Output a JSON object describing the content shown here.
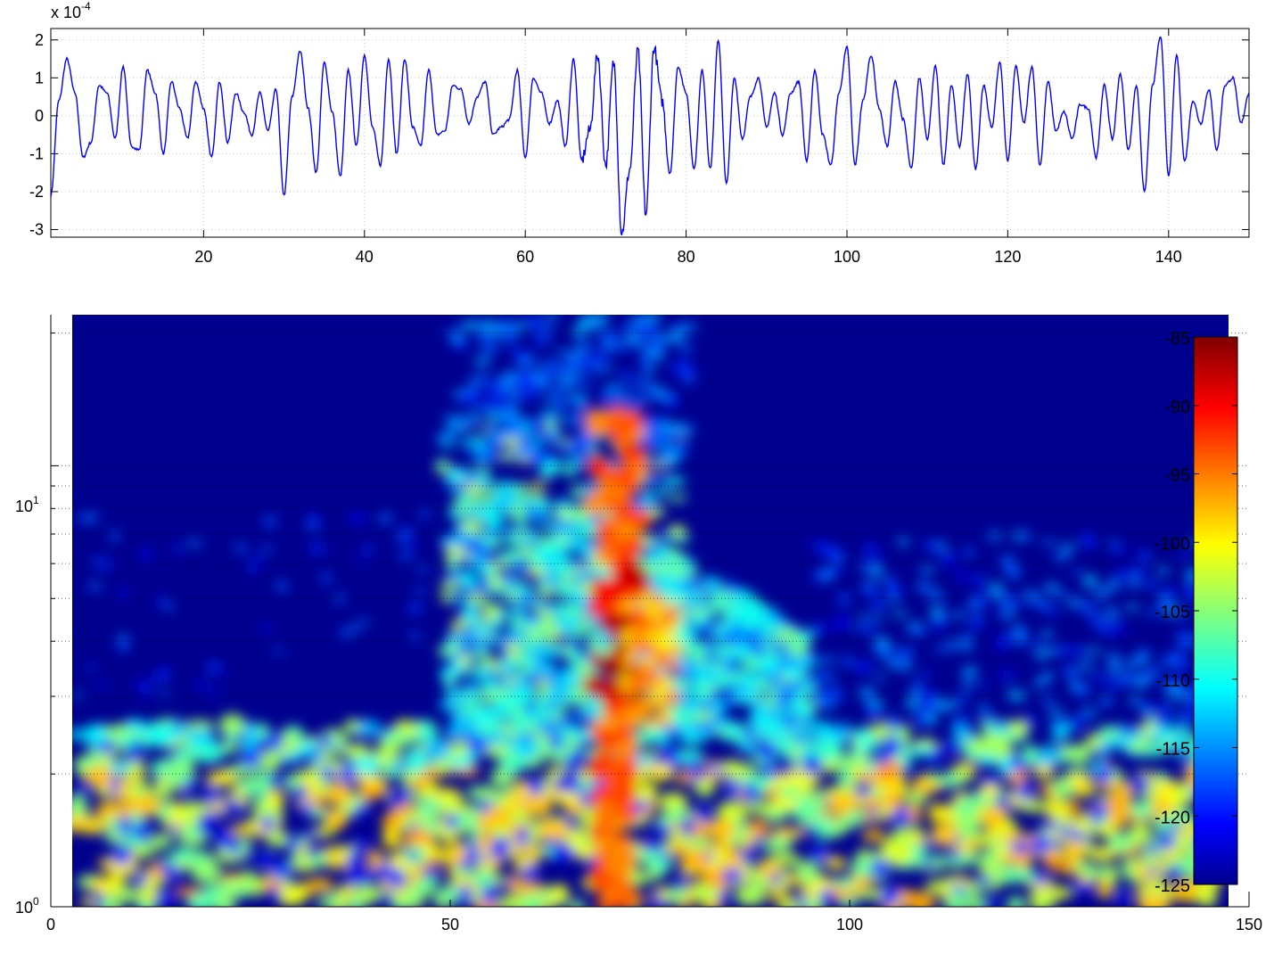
{
  "chart_data": [
    {
      "type": "line",
      "scale_label": {
        "base": "x 10",
        "exponent": "-4"
      },
      "xlim": [
        1,
        150
      ],
      "ylim": [
        -3.2,
        2.3
      ],
      "x_ticks": [
        20,
        40,
        60,
        80,
        100,
        120,
        140
      ],
      "y_ticks": [
        2,
        1,
        0,
        -1,
        -2,
        -3
      ],
      "grid": true,
      "series": [
        {
          "color": "#0000ff",
          "x": [
            1,
            2,
            3,
            4,
            5,
            6,
            7,
            8,
            9,
            10,
            11,
            12,
            13,
            14,
            15,
            16,
            17,
            18,
            19,
            20,
            21,
            22,
            23,
            24,
            25,
            26,
            27,
            28,
            29,
            30,
            31,
            32,
            33,
            34,
            35,
            36,
            37,
            38,
            39,
            40,
            41,
            42,
            43,
            44,
            45,
            46,
            47,
            48,
            49,
            50,
            51,
            52,
            53,
            54,
            55,
            56,
            57,
            58,
            59,
            60,
            61,
            62,
            63,
            64,
            65,
            66,
            67,
            68,
            69,
            70,
            71,
            72,
            73,
            74,
            75,
            76,
            77,
            78,
            79,
            80,
            81,
            82,
            83,
            84,
            85,
            86,
            87,
            88,
            89,
            90,
            91,
            92,
            93,
            94,
            95,
            96,
            97,
            98,
            99,
            100,
            101,
            102,
            103,
            104,
            105,
            106,
            107,
            108,
            109,
            110,
            111,
            112,
            113,
            114,
            115,
            116,
            117,
            118,
            119,
            120,
            121,
            122,
            123,
            124,
            125,
            126,
            127,
            128,
            129,
            130,
            131,
            132,
            133,
            134,
            135,
            136,
            137,
            138,
            139,
            140,
            141,
            142,
            143,
            144,
            145,
            146,
            147,
            148,
            149,
            150
          ],
          "values": [
            -2.1,
            0.4,
            1.5,
            0.6,
            -1.1,
            -0.7,
            0.8,
            0.6,
            -0.6,
            1.3,
            -0.8,
            -0.9,
            1.2,
            0.6,
            -1.0,
            0.9,
            0.2,
            -0.6,
            0.9,
            0.2,
            -1.1,
            0.9,
            -0.7,
            0.6,
            0.1,
            -0.5,
            0.6,
            -0.4,
            0.7,
            -2.1,
            0.5,
            1.7,
            0.2,
            -1.5,
            1.4,
            0.1,
            -1.6,
            1.2,
            -0.8,
            1.6,
            -0.3,
            -1.3,
            1.5,
            -1.0,
            1.5,
            -0.3,
            -0.8,
            1.2,
            -0.5,
            -0.4,
            0.8,
            0.7,
            -0.2,
            0.5,
            0.9,
            -0.5,
            -0.3,
            -0.1,
            1.2,
            -1.1,
            1.0,
            0.6,
            -0.2,
            0.4,
            -0.8,
            1.5,
            -1.2,
            -0.4,
            1.6,
            -1.3,
            1.4,
            -3.1,
            -1.4,
            1.7,
            -2.6,
            1.8,
            0.4,
            -1.5,
            1.3,
            0.6,
            -1.4,
            1.2,
            -1.4,
            2.0,
            -1.8,
            1.0,
            -0.6,
            0.5,
            1.0,
            -0.3,
            0.6,
            -0.5,
            0.6,
            0.9,
            -1.2,
            1.2,
            -0.5,
            -1.3,
            0.6,
            1.8,
            -1.3,
            0.4,
            1.6,
            0.2,
            -0.8,
            0.9,
            -0.1,
            -1.4,
            1.0,
            -0.6,
            1.3,
            -1.3,
            0.8,
            -0.8,
            1.1,
            -1.4,
            0.8,
            -0.3,
            1.4,
            -1.2,
            1.3,
            -0.2,
            1.3,
            -1.3,
            0.9,
            -0.4,
            0.1,
            -0.6,
            0.3,
            0.2,
            -1.1,
            0.8,
            -0.6,
            1.1,
            -0.9,
            0.8,
            -2.0,
            0.8,
            2.1,
            -1.6,
            1.6,
            -1.2,
            0.4,
            -0.2,
            0.7,
            -0.9,
            0.8,
            1.0,
            -0.2,
            0.6
          ]
        }
      ]
    },
    {
      "type": "heatmap",
      "xlim": [
        0,
        150
      ],
      "ylim": [
        1,
        22
      ],
      "y_scale": "log",
      "x_ticks": [
        0,
        50,
        100,
        150
      ],
      "y_ticks": [
        {
          "base": "10",
          "exponent": "0"
        },
        {
          "base": "10",
          "exponent": "1"
        }
      ],
      "grid": true,
      "colormap": "jet",
      "colorbar": {
        "range": [
          -125,
          -85
        ],
        "ticks": [
          -85,
          -90,
          -95,
          -100,
          -105,
          -110,
          -115,
          -120,
          -125
        ],
        "placement": "right-inside"
      }
    }
  ]
}
